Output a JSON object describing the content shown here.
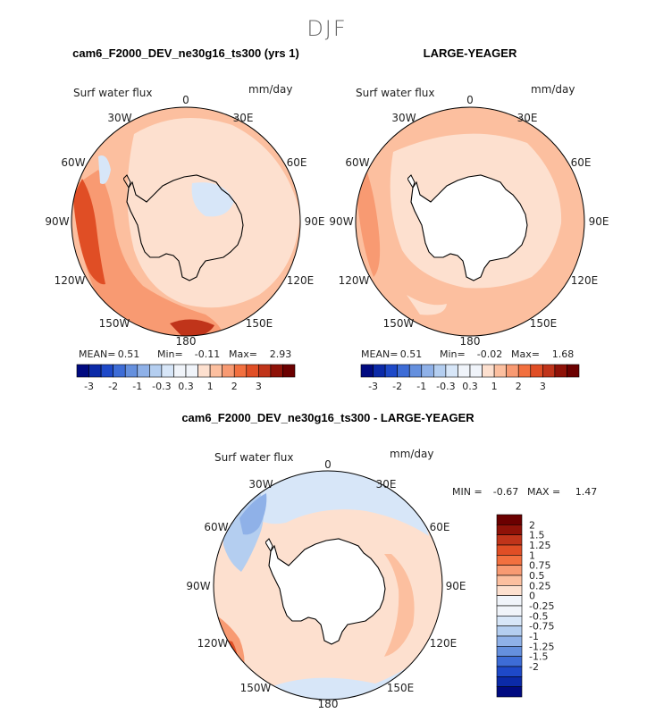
{
  "chart_data": {
    "type": "polar-contour-map",
    "suptitle": "DJF",
    "variable": "Surf water flux",
    "units": "mm/day",
    "lon_labels": [
      "0",
      "30E",
      "60E",
      "90E",
      "120E",
      "150E",
      "180",
      "150W",
      "120W",
      "90W",
      "60W",
      "30W"
    ],
    "panels": [
      {
        "title": "cam6_F2000_DEV_ne30g16_ts300 (yrs 1)",
        "mean_label": "MEAN=",
        "mean": "0.51",
        "min_label": "Min=",
        "min": "-0.11",
        "max_label": "Max=",
        "max": "2.93",
        "colorbar_ticks": [
          "-3",
          "-2",
          "-1",
          "-0.3",
          "0.3",
          "1",
          "2",
          "3"
        ],
        "colorbar_levels": [
          -3,
          -2.5,
          -2,
          -1.5,
          -1,
          -0.6,
          -0.3,
          0,
          0.3,
          0.6,
          1,
          1.5,
          2,
          2.5,
          3
        ]
      },
      {
        "title": "LARGE-YEAGER",
        "mean_label": "MEAN=",
        "mean": "0.51",
        "min_label": "Min=",
        "min": "-0.02",
        "max_label": "Max=",
        "max": "1.68",
        "colorbar_ticks": [
          "-3",
          "-2",
          "-1",
          "-0.3",
          "0.3",
          "1",
          "2",
          "3"
        ],
        "colorbar_levels": [
          -3,
          -2.5,
          -2,
          -1.5,
          -1,
          -0.6,
          -0.3,
          0,
          0.3,
          0.6,
          1,
          1.5,
          2,
          2.5,
          3
        ]
      },
      {
        "title": "cam6_F2000_DEV_ne30g16_ts300 - LARGE-YEAGER",
        "min_label": "MIN =",
        "min": "-0.67",
        "max_label": "MAX =",
        "max": "1.47",
        "colorbar_ticks": [
          "2",
          "1.5",
          "1.25",
          "1",
          "0.75",
          "0.5",
          "0.25",
          "0",
          "-0.25",
          "-0.5",
          "-0.75",
          "-1",
          "-1.25",
          "-1.5",
          "-2"
        ]
      }
    ],
    "colors": {
      "pos": [
        "#fde0cf",
        "#fcbf9f",
        "#f89a72",
        "#f2703f",
        "#e04e25",
        "#c0341a",
        "#8f1208",
        "#6b0000"
      ],
      "neu": "#f0f4fa",
      "neg": [
        "#d7e6f8",
        "#b4cef0",
        "#8fb1e8",
        "#6590de",
        "#3d6cd6",
        "#1e49c8",
        "#0b2aa8",
        "#000a80"
      ],
      "ice": "#ffffff",
      "coast": "#000000"
    }
  }
}
